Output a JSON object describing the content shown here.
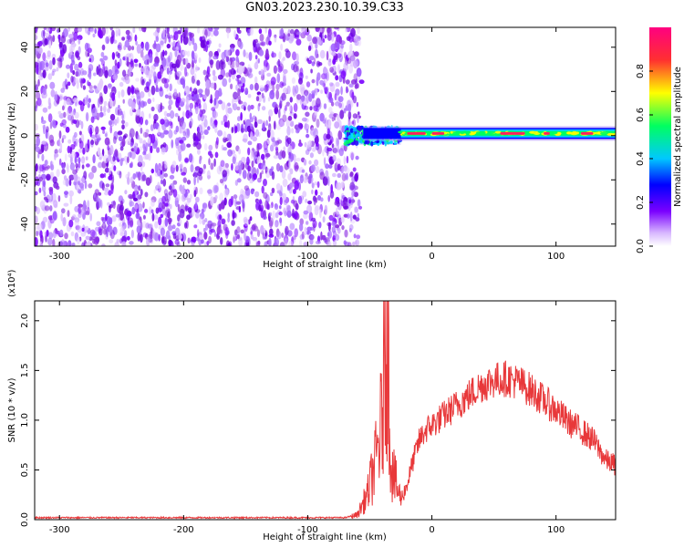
{
  "page": {
    "title": "GN03.2023.230.10.39.C33"
  },
  "chart_data": [
    {
      "type": "heatmap",
      "title": "GN03.2023.230.10.39.C33",
      "xlabel": "Height of straight line (km)",
      "ylabel": "Frequency (Hz)",
      "xlim": [
        -320,
        148
      ],
      "ylim": [
        -50,
        49
      ],
      "xticks": [
        -300,
        -200,
        -100,
        0,
        100
      ],
      "yticks": [
        -40,
        -20,
        0,
        20,
        40
      ],
      "colorbar": {
        "label": "Normalized spectral amplitude",
        "range": [
          0.0,
          1.0
        ],
        "ticks": [
          "0.0",
          "0.2",
          "0.4",
          "0.6",
          "0.8"
        ],
        "colormap": [
          "#ffffff",
          "#7a00ff",
          "#0000ff",
          "#00c8ff",
          "#00ff60",
          "#ffff00",
          "#ff3030",
          "#ff0080"
        ]
      },
      "regions": [
        {
          "x_range": [
            -320,
            -63
          ],
          "freq_range": [
            -50,
            49
          ],
          "amplitude": "low-moderate noise (0.1-0.5)"
        },
        {
          "x_range": [
            -70,
            -25
          ],
          "center_freq": 0,
          "freq_width": 8,
          "amplitude": "0.3-0.6"
        },
        {
          "x_range": [
            -25,
            148
          ],
          "center_freq": 1,
          "freq_width": 5,
          "amplitude": "0.3-0.9",
          "peak_band_amplitude": 0.95
        }
      ]
    },
    {
      "type": "line",
      "xlabel": "Height of straight line (km)",
      "ylabel": "SNR (10 * v/v)",
      "y_multiplier": "(x10⁴)",
      "xlim": [
        -320,
        148
      ],
      "ylim": [
        0,
        2.2
      ],
      "xticks": [
        -300,
        -200,
        -100,
        0,
        100
      ],
      "yticks": [
        "0.0",
        "0.5",
        "1.0",
        "1.5",
        "2.0"
      ],
      "series_color": "#e8383a",
      "points": [
        [
          -320,
          0.02
        ],
        [
          -250,
          0.02
        ],
        [
          -150,
          0.02
        ],
        [
          -70,
          0.02
        ],
        [
          -60,
          0.05
        ],
        [
          -52,
          0.25
        ],
        [
          -45,
          0.6
        ],
        [
          -40,
          1.0
        ],
        [
          -37,
          2.2
        ],
        [
          -35,
          1.55
        ],
        [
          -33,
          0.6
        ],
        [
          -30,
          0.4
        ],
        [
          -25,
          0.2
        ],
        [
          -20,
          0.35
        ],
        [
          -15,
          0.6
        ],
        [
          -10,
          0.8
        ],
        [
          -5,
          0.9
        ],
        [
          0,
          0.95
        ],
        [
          10,
          1.05
        ],
        [
          20,
          1.15
        ],
        [
          30,
          1.25
        ],
        [
          40,
          1.35
        ],
        [
          50,
          1.4
        ],
        [
          60,
          1.42
        ],
        [
          70,
          1.38
        ],
        [
          80,
          1.3
        ],
        [
          90,
          1.2
        ],
        [
          100,
          1.1
        ],
        [
          110,
          0.98
        ],
        [
          120,
          0.9
        ],
        [
          130,
          0.8
        ],
        [
          140,
          0.6
        ],
        [
          148,
          0.55
        ]
      ]
    }
  ]
}
